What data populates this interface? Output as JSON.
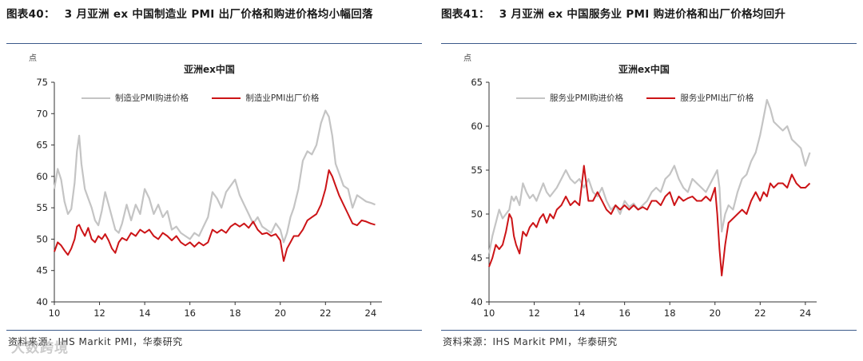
{
  "left": {
    "fig_label": "图表40：",
    "fig_title": "3 月亚洲 ex 中国制造业 PMI 出厂价格和购进价格均小幅回落",
    "unit": "点",
    "plot_title": "亚洲ex中国",
    "source": "资料来源：IHS Markit PMI，华泰研究"
  },
  "right": {
    "fig_label": "图表41：",
    "fig_title": "3 月亚洲 ex 中国服务业 PMI 购进价格和出厂价格均回升",
    "unit": "点",
    "plot_title": "亚洲ex中国",
    "source": "资料来源：IHS Markit PMI，华泰研究"
  },
  "watermark": "大数跨境",
  "colors": {
    "input": "#c4c4c4",
    "output": "#cc1417",
    "axis": "#333333",
    "rule": "#3c5a8a"
  },
  "chart_data": [
    {
      "type": "line",
      "title": "亚洲ex中国",
      "ylabel": "点",
      "ylim": [
        40,
        75
      ],
      "yticks": [
        40,
        45,
        50,
        55,
        60,
        65,
        70,
        75
      ],
      "xlim": [
        2010,
        2024.5
      ],
      "xticks": [
        "10",
        "12",
        "14",
        "16",
        "18",
        "20",
        "22",
        "24"
      ],
      "legend_position": "top",
      "series": [
        {
          "name": "制造业PMI购进价格",
          "color": "#c4c4c4",
          "x": [
            2010.0,
            2010.15,
            2010.3,
            2010.45,
            2010.6,
            2010.75,
            2010.9,
            2011.0,
            2011.1,
            2011.2,
            2011.35,
            2011.5,
            2011.65,
            2011.8,
            2011.95,
            2012.1,
            2012.25,
            2012.4,
            2012.55,
            2012.7,
            2012.85,
            2013.0,
            2013.2,
            2013.4,
            2013.6,
            2013.8,
            2014.0,
            2014.2,
            2014.4,
            2014.6,
            2014.8,
            2015.0,
            2015.2,
            2015.4,
            2015.6,
            2015.8,
            2016.0,
            2016.2,
            2016.4,
            2016.6,
            2016.8,
            2017.0,
            2017.2,
            2017.4,
            2017.6,
            2017.8,
            2018.0,
            2018.2,
            2018.4,
            2018.6,
            2018.8,
            2019.0,
            2019.2,
            2019.4,
            2019.6,
            2019.8,
            2020.0,
            2020.15,
            2020.3,
            2020.45,
            2020.6,
            2020.8,
            2021.0,
            2021.2,
            2021.4,
            2021.6,
            2021.8,
            2022.0,
            2022.15,
            2022.3,
            2022.45,
            2022.6,
            2022.8,
            2023.0,
            2023.2,
            2023.4,
            2023.6,
            2023.8,
            2024.0,
            2024.2
          ],
          "values": [
            58.0,
            61.2,
            59.5,
            56.0,
            54.0,
            54.8,
            59.0,
            64.0,
            66.5,
            62.0,
            58.0,
            56.5,
            55.0,
            53.0,
            52.2,
            54.5,
            57.5,
            55.5,
            53.5,
            51.5,
            51.0,
            52.5,
            55.5,
            53.0,
            55.5,
            54.0,
            58.0,
            56.5,
            54.0,
            55.5,
            53.5,
            54.5,
            51.5,
            52.0,
            51.0,
            50.5,
            50.0,
            51.0,
            50.5,
            52.0,
            53.5,
            57.5,
            56.5,
            55.0,
            57.5,
            58.5,
            59.5,
            57.0,
            55.5,
            54.0,
            52.5,
            53.5,
            52.0,
            51.5,
            51.0,
            52.5,
            51.5,
            49.5,
            51.0,
            53.5,
            55.0,
            58.0,
            62.5,
            64.0,
            63.5,
            65.0,
            68.5,
            70.5,
            69.5,
            66.5,
            62.0,
            60.5,
            58.5,
            58.0,
            55.0,
            57.0,
            56.5,
            56.0,
            55.8,
            55.5
          ]
        },
        {
          "name": "制造业PMI出厂价格",
          "color": "#cc1417",
          "x": [
            2010.0,
            2010.15,
            2010.3,
            2010.45,
            2010.6,
            2010.75,
            2010.9,
            2011.0,
            2011.1,
            2011.2,
            2011.35,
            2011.5,
            2011.65,
            2011.8,
            2011.95,
            2012.1,
            2012.25,
            2012.4,
            2012.55,
            2012.7,
            2012.85,
            2013.0,
            2013.2,
            2013.4,
            2013.6,
            2013.8,
            2014.0,
            2014.2,
            2014.4,
            2014.6,
            2014.8,
            2015.0,
            2015.2,
            2015.4,
            2015.6,
            2015.8,
            2016.0,
            2016.2,
            2016.4,
            2016.6,
            2016.8,
            2017.0,
            2017.2,
            2017.4,
            2017.6,
            2017.8,
            2018.0,
            2018.2,
            2018.4,
            2018.6,
            2018.8,
            2019.0,
            2019.2,
            2019.4,
            2019.6,
            2019.8,
            2020.0,
            2020.15,
            2020.3,
            2020.45,
            2020.6,
            2020.8,
            2021.0,
            2021.2,
            2021.4,
            2021.6,
            2021.8,
            2022.0,
            2022.15,
            2022.3,
            2022.45,
            2022.6,
            2022.8,
            2023.0,
            2023.2,
            2023.4,
            2023.6,
            2023.8,
            2024.0,
            2024.2
          ],
          "values": [
            48.0,
            49.5,
            49.0,
            48.2,
            47.5,
            48.5,
            50.0,
            52.0,
            52.3,
            51.5,
            50.5,
            51.8,
            50.0,
            49.5,
            50.5,
            50.0,
            50.8,
            49.8,
            48.5,
            47.8,
            49.5,
            50.2,
            49.8,
            51.0,
            50.5,
            51.5,
            51.0,
            51.5,
            50.5,
            50.0,
            51.0,
            50.5,
            49.8,
            50.5,
            49.5,
            49.0,
            49.5,
            48.8,
            49.5,
            49.0,
            49.5,
            51.5,
            51.0,
            51.5,
            51.0,
            52.0,
            52.5,
            52.0,
            52.5,
            51.8,
            52.8,
            51.5,
            50.8,
            51.0,
            50.5,
            50.8,
            49.8,
            46.5,
            48.5,
            49.5,
            50.5,
            50.5,
            51.5,
            53.0,
            53.5,
            54.0,
            55.5,
            58.0,
            61.0,
            60.0,
            58.5,
            57.0,
            55.5,
            54.0,
            52.5,
            52.2,
            53.0,
            52.8,
            52.5,
            52.3
          ]
        }
      ]
    },
    {
      "type": "line",
      "title": "亚洲ex中国",
      "ylabel": "点",
      "ylim": [
        40,
        65
      ],
      "yticks": [
        40,
        45,
        50,
        55,
        60,
        65
      ],
      "xlim": [
        2010,
        2024.5
      ],
      "xticks": [
        "10",
        "12",
        "14",
        "16",
        "18",
        "20",
        "22",
        "24"
      ],
      "legend_position": "top",
      "series": [
        {
          "name": "服务业PMI购进价格",
          "color": "#c4c4c4",
          "x": [
            2010.0,
            2010.15,
            2010.3,
            2010.45,
            2010.6,
            2010.75,
            2010.9,
            2011.0,
            2011.1,
            2011.2,
            2011.35,
            2011.5,
            2011.65,
            2011.8,
            2011.95,
            2012.1,
            2012.25,
            2012.4,
            2012.55,
            2012.7,
            2012.85,
            2013.0,
            2013.2,
            2013.4,
            2013.6,
            2013.8,
            2014.0,
            2014.2,
            2014.4,
            2014.6,
            2014.8,
            2015.0,
            2015.2,
            2015.4,
            2015.6,
            2015.8,
            2016.0,
            2016.2,
            2016.4,
            2016.6,
            2016.8,
            2017.0,
            2017.2,
            2017.4,
            2017.6,
            2017.8,
            2018.0,
            2018.2,
            2018.4,
            2018.6,
            2018.8,
            2019.0,
            2019.2,
            2019.4,
            2019.6,
            2019.8,
            2020.0,
            2020.1,
            2020.2,
            2020.3,
            2020.45,
            2020.6,
            2020.8,
            2021.0,
            2021.2,
            2021.4,
            2021.6,
            2021.8,
            2022.0,
            2022.15,
            2022.3,
            2022.45,
            2022.6,
            2022.8,
            2023.0,
            2023.2,
            2023.4,
            2023.6,
            2023.8,
            2024.0,
            2024.2
          ],
          "values": [
            45.5,
            47.5,
            49.0,
            50.5,
            49.5,
            50.0,
            50.5,
            52.0,
            51.5,
            52.0,
            51.0,
            53.5,
            52.5,
            51.8,
            52.2,
            51.5,
            52.5,
            53.5,
            52.5,
            52.0,
            52.5,
            53.0,
            54.0,
            55.0,
            54.0,
            53.5,
            54.0,
            53.0,
            54.0,
            52.5,
            52.0,
            53.0,
            51.5,
            50.5,
            51.0,
            50.0,
            51.5,
            50.8,
            51.2,
            50.5,
            51.0,
            51.5,
            52.5,
            53.0,
            52.5,
            54.0,
            54.5,
            55.5,
            54.0,
            53.0,
            52.5,
            54.0,
            53.5,
            53.0,
            52.5,
            53.5,
            54.5,
            55.0,
            53.0,
            48.0,
            50.0,
            51.0,
            50.5,
            52.5,
            54.0,
            54.5,
            56.0,
            57.0,
            59.0,
            61.0,
            63.0,
            62.0,
            60.5,
            60.0,
            59.5,
            60.0,
            58.5,
            58.0,
            57.5,
            55.5,
            57.0
          ]
        },
        {
          "name": "服务业PMI出厂价格",
          "color": "#cc1417",
          "x": [
            2010.0,
            2010.15,
            2010.3,
            2010.45,
            2010.6,
            2010.75,
            2010.9,
            2011.0,
            2011.1,
            2011.2,
            2011.35,
            2011.5,
            2011.65,
            2011.8,
            2011.95,
            2012.1,
            2012.25,
            2012.4,
            2012.55,
            2012.7,
            2012.85,
            2013.0,
            2013.2,
            2013.4,
            2013.6,
            2013.8,
            2014.0,
            2014.2,
            2014.4,
            2014.6,
            2014.8,
            2015.0,
            2015.2,
            2015.4,
            2015.6,
            2015.8,
            2016.0,
            2016.2,
            2016.4,
            2016.6,
            2016.8,
            2017.0,
            2017.2,
            2017.4,
            2017.6,
            2017.8,
            2018.0,
            2018.2,
            2018.4,
            2018.6,
            2018.8,
            2019.0,
            2019.2,
            2019.4,
            2019.6,
            2019.8,
            2020.0,
            2020.1,
            2020.2,
            2020.3,
            2020.45,
            2020.6,
            2020.8,
            2021.0,
            2021.2,
            2021.4,
            2021.6,
            2021.8,
            2022.0,
            2022.15,
            2022.3,
            2022.45,
            2022.6,
            2022.8,
            2023.0,
            2023.2,
            2023.4,
            2023.6,
            2023.8,
            2024.0,
            2024.2
          ],
          "values": [
            44.0,
            45.0,
            46.5,
            46.0,
            46.5,
            48.0,
            50.0,
            49.5,
            47.5,
            46.5,
            45.5,
            48.0,
            47.5,
            48.5,
            49.0,
            48.5,
            49.5,
            50.0,
            49.0,
            50.0,
            49.5,
            50.5,
            51.0,
            52.0,
            51.0,
            51.5,
            51.0,
            55.5,
            51.5,
            51.5,
            52.5,
            51.5,
            50.5,
            50.0,
            51.0,
            50.5,
            51.0,
            50.5,
            51.0,
            50.5,
            50.8,
            50.5,
            51.5,
            51.5,
            51.0,
            52.0,
            52.5,
            51.0,
            52.0,
            51.5,
            51.8,
            52.0,
            51.5,
            51.5,
            52.0,
            51.5,
            53.0,
            50.0,
            46.0,
            43.0,
            46.5,
            49.0,
            49.5,
            50.0,
            50.5,
            50.0,
            51.5,
            52.5,
            51.5,
            52.5,
            52.0,
            53.5,
            53.0,
            53.5,
            53.5,
            53.0,
            54.5,
            53.5,
            53.0,
            53.0,
            53.5
          ]
        }
      ]
    }
  ]
}
